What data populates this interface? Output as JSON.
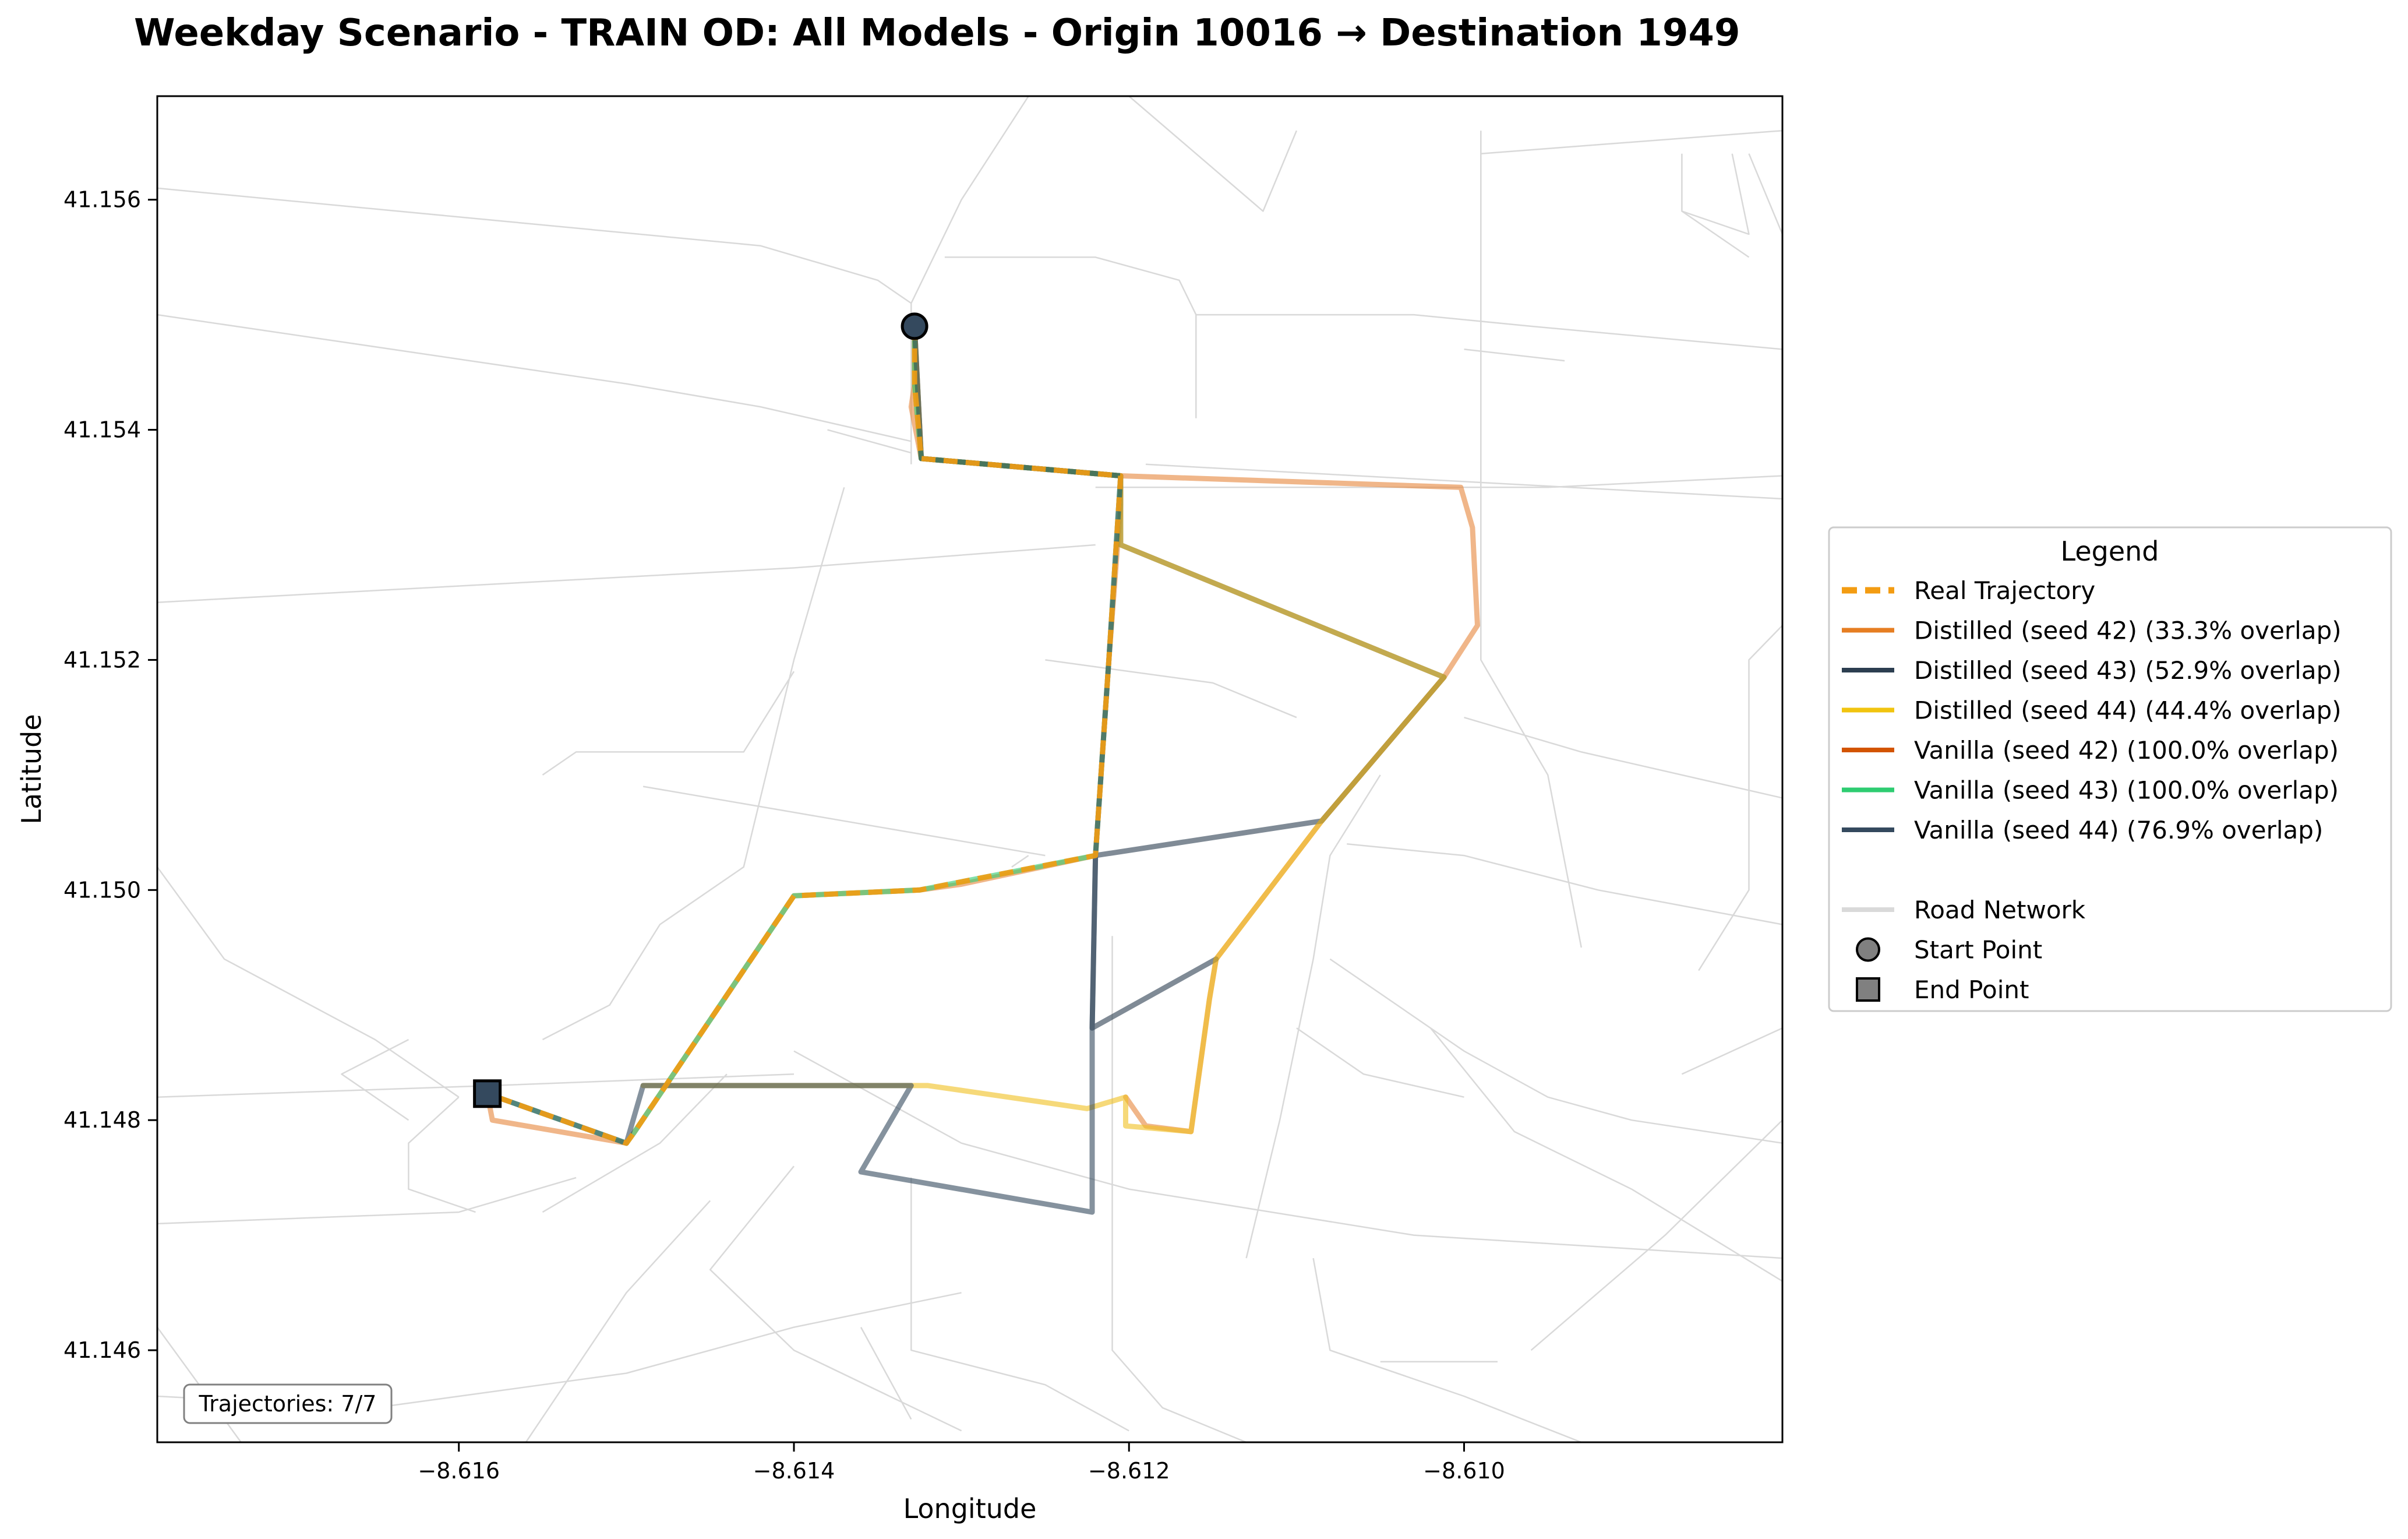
{
  "title": "Weekday Scenario - TRAIN OD: All Models - Origin 10016 → Destination 1949",
  "chart_data": {
    "type": "line",
    "xlabel": "Longitude",
    "ylabel": "Latitude",
    "xlim": [
      -8.6178,
      -8.6081
    ],
    "ylim": [
      41.1452,
      41.1569
    ],
    "xticks": [
      -8.616,
      -8.614,
      -8.612,
      -8.61
    ],
    "xtick_labels": [
      "−8.616",
      "−8.614",
      "−8.612",
      "−8.610"
    ],
    "yticks": [
      41.146,
      41.148,
      41.15,
      41.152,
      41.154,
      41.156
    ],
    "ytick_labels": [
      "41.146",
      "41.148",
      "41.150",
      "41.152",
      "41.154",
      "41.156"
    ],
    "grid": false,
    "legend_position": "outside-right",
    "legend_title": "Legend",
    "annotation": "Trajectories: 7/7",
    "road_color": "#d9d9d9",
    "roads": [
      [
        [
          -8.6178,
          41.1561
        ],
        [
          -8.6142,
          41.1556
        ],
        [
          -8.6135,
          41.1553
        ],
        [
          -8.6133,
          41.1551
        ]
      ],
      [
        [
          -8.6178,
          41.155
        ],
        [
          -8.615,
          41.1544
        ],
        [
          -8.6142,
          41.1542
        ],
        [
          -8.6133,
          41.1539
        ]
      ],
      [
        [
          -8.6178,
          41.1525
        ],
        [
          -8.614,
          41.1528
        ],
        [
          -8.6122,
          41.153
        ]
      ],
      [
        [
          -8.6126,
          41.1569
        ],
        [
          -8.613,
          41.156
        ],
        [
          -8.6133,
          41.1551
        ],
        [
          -8.6133,
          41.1537
        ]
      ],
      [
        [
          -8.6131,
          41.1555
        ],
        [
          -8.6122,
          41.1555
        ],
        [
          -8.6117,
          41.1553
        ],
        [
          -8.6116,
          41.155
        ],
        [
          -8.6116,
          41.1541
        ]
      ],
      [
        [
          -8.6116,
          41.155
        ],
        [
          -8.6103,
          41.155
        ],
        [
          -8.6096,
          41.1549
        ],
        [
          -8.6081,
          41.1547
        ]
      ],
      [
        [
          -8.6099,
          41.1566
        ],
        [
          -8.6099,
          41.152
        ],
        [
          -8.6095,
          41.151
        ],
        [
          -8.6093,
          41.1495
        ]
      ],
      [
        [
          -8.611,
          41.1566
        ],
        [
          -8.6112,
          41.1559
        ],
        [
          -8.612,
          41.1569
        ]
      ],
      [
        [
          -8.6122,
          41.1535
        ],
        [
          -8.6095,
          41.1535
        ],
        [
          -8.6081,
          41.1536
        ]
      ],
      [
        [
          -8.6119,
          41.1537
        ],
        [
          -8.6081,
          41.1534
        ]
      ],
      [
        [
          -8.6137,
          41.1535
        ],
        [
          -8.614,
          41.152
        ],
        [
          -8.6143,
          41.1502
        ],
        [
          -8.6148,
          41.1497
        ],
        [
          -8.6151,
          41.149
        ],
        [
          -8.6155,
          41.1487
        ]
      ],
      [
        [
          -8.614,
          41.1519
        ],
        [
          -8.6143,
          41.1512
        ],
        [
          -8.6153,
          41.1512
        ],
        [
          -8.6155,
          41.151
        ]
      ],
      [
        [
          -8.6149,
          41.1509
        ],
        [
          -8.6125,
          41.1503
        ]
      ],
      [
        [
          -8.6127,
          41.1502
        ],
        [
          -8.6126,
          41.1503
        ]
      ],
      [
        [
          -8.6178,
          41.1502
        ],
        [
          -8.6174,
          41.1494
        ],
        [
          -8.6165,
          41.1487
        ],
        [
          -8.616,
          41.1482
        ]
      ],
      [
        [
          -8.6178,
          41.1482
        ],
        [
          -8.6158,
          41.1483
        ],
        [
          -8.614,
          41.1484
        ]
      ],
      [
        [
          -8.6178,
          41.1471
        ],
        [
          -8.616,
          41.1472
        ],
        [
          -8.6153,
          41.1475
        ]
      ],
      [
        [
          -8.616,
          41.1482
        ],
        [
          -8.6163,
          41.1478
        ],
        [
          -8.6163,
          41.1474
        ],
        [
          -8.6159,
          41.1472
        ]
      ],
      [
        [
          -8.6163,
          41.148
        ],
        [
          -8.6167,
          41.1484
        ],
        [
          -8.6163,
          41.1487
        ]
      ],
      [
        [
          -8.6155,
          41.1472
        ],
        [
          -8.6148,
          41.1478
        ],
        [
          -8.6144,
          41.1484
        ]
      ],
      [
        [
          -8.6145,
          41.1473
        ],
        [
          -8.615,
          41.1465
        ],
        [
          -8.6156,
          41.1452
        ]
      ],
      [
        [
          -8.614,
          41.1486
        ],
        [
          -8.613,
          41.1478
        ],
        [
          -8.612,
          41.1474
        ],
        [
          -8.6103,
          41.147
        ],
        [
          -8.6081,
          41.1468
        ]
      ],
      [
        [
          -8.614,
          41.1476
        ],
        [
          -8.6145,
          41.1467
        ],
        [
          -8.614,
          41.146
        ],
        [
          -8.613,
          41.1453
        ]
      ],
      [
        [
          -8.6178,
          41.1456
        ],
        [
          -8.6165,
          41.1455
        ],
        [
          -8.615,
          41.1458
        ],
        [
          -8.614,
          41.1462
        ],
        [
          -8.613,
          41.1465
        ]
      ],
      [
        [
          -8.6178,
          41.1462
        ],
        [
          -8.6173,
          41.1452
        ]
      ],
      [
        [
          -8.6133,
          41.1475
        ],
        [
          -8.6133,
          41.146
        ],
        [
          -8.6125,
          41.1457
        ],
        [
          -8.612,
          41.1453
        ]
      ],
      [
        [
          -8.6136,
          41.1462
        ],
        [
          -8.6133,
          41.1454
        ]
      ],
      [
        [
          -8.6121,
          41.1496
        ],
        [
          -8.6121,
          41.146
        ],
        [
          -8.6118,
          41.1455
        ],
        [
          -8.6113,
          41.1452
        ]
      ],
      [
        [
          -8.6113,
          41.1468
        ],
        [
          -8.6111,
          41.148
        ],
        [
          -8.6109,
          41.1494
        ],
        [
          -8.6108,
          41.1503
        ],
        [
          -8.6105,
          41.151
        ]
      ],
      [
        [
          -8.6108,
          41.1494
        ],
        [
          -8.61,
          41.1486
        ],
        [
          -8.6095,
          41.1482
        ],
        [
          -8.609,
          41.148
        ],
        [
          -8.6081,
          41.1478
        ]
      ],
      [
        [
          -8.6102,
          41.1488
        ],
        [
          -8.6097,
          41.1479
        ],
        [
          -8.609,
          41.1474
        ],
        [
          -8.6081,
          41.1466
        ]
      ],
      [
        [
          -8.6096,
          41.146
        ],
        [
          -8.6088,
          41.147
        ],
        [
          -8.6081,
          41.148
        ]
      ],
      [
        [
          -8.6109,
          41.1468
        ],
        [
          -8.6108,
          41.146
        ],
        [
          -8.61,
          41.1456
        ],
        [
          -8.6093,
          41.1452
        ]
      ],
      [
        [
          -8.6105,
          41.1459
        ],
        [
          -8.6098,
          41.1459
        ]
      ],
      [
        [
          -8.6107,
          41.1504
        ],
        [
          -8.61,
          41.1503
        ],
        [
          -8.6092,
          41.15
        ],
        [
          -8.6081,
          41.1497
        ]
      ],
      [
        [
          -8.61,
          41.1515
        ],
        [
          -8.6093,
          41.1512
        ],
        [
          -8.6081,
          41.1508
        ]
      ],
      [
        [
          -8.6081,
          41.1523
        ],
        [
          -8.6083,
          41.152
        ],
        [
          -8.6083,
          41.15
        ],
        [
          -8.6086,
          41.1493
        ]
      ],
      [
        [
          -8.6081,
          41.1488
        ],
        [
          -8.6087,
          41.1484
        ]
      ],
      [
        [
          -8.6087,
          41.1564
        ],
        [
          -8.6087,
          41.1559
        ],
        [
          -8.6083,
          41.1557
        ],
        [
          -8.6084,
          41.1564
        ]
      ],
      [
        [
          -8.6087,
          41.1559
        ],
        [
          -8.6083,
          41.1555
        ]
      ],
      [
        [
          -8.6083,
          41.1564
        ],
        [
          -8.6081,
          41.1557
        ]
      ],
      [
        [
          -8.6099,
          41.1564
        ],
        [
          -8.6081,
          41.1566
        ]
      ],
      [
        [
          -8.61,
          41.1547
        ],
        [
          -8.6094,
          41.1546
        ]
      ],
      [
        [
          -8.611,
          41.1488
        ],
        [
          -8.6106,
          41.1484
        ],
        [
          -8.61,
          41.1482
        ]
      ],
      [
        [
          -8.6125,
          41.152
        ],
        [
          -8.6115,
          41.1518
        ],
        [
          -8.611,
          41.1515
        ]
      ],
      [
        [
          -8.6138,
          41.154
        ],
        [
          -8.6133,
          41.1538
        ]
      ]
    ],
    "series": [
      {
        "name": "Vanilla (seed 42) (100.0% overlap)",
        "color": "#e6863b",
        "style": "solid",
        "points": [
          [
            -8.61328,
            41.1549
          ],
          [
            -8.61328,
            41.1544
          ],
          [
            -8.6133,
            41.1542
          ],
          [
            -8.61324,
            41.15375
          ],
          [
            -8.61205,
            41.1536
          ],
          [
            -8.61205,
            41.15335
          ],
          [
            -8.61212,
            41.152
          ],
          [
            -8.6122,
            41.1503
          ],
          [
            -8.613,
            41.15005
          ],
          [
            -8.61325,
            41.15
          ],
          [
            -8.614,
            41.14995
          ],
          [
            -8.61495,
            41.1479
          ],
          [
            -8.615,
            41.1478
          ],
          [
            -8.6158,
            41.148
          ],
          [
            -8.61583,
            41.14823
          ]
        ]
      },
      {
        "name": "Distilled (seed 42) (33.3% overlap)",
        "color": "#e6863b",
        "style": "solid",
        "points": [
          [
            -8.61328,
            41.1549
          ],
          [
            -8.61328,
            41.1544
          ],
          [
            -8.61324,
            41.15375
          ],
          [
            -8.61205,
            41.1536
          ],
          [
            -8.61002,
            41.1535
          ],
          [
            -8.60995,
            41.15315
          ],
          [
            -8.60992,
            41.1523
          ],
          [
            -8.61012,
            41.15185
          ],
          [
            -8.61085,
            41.1506
          ],
          [
            -8.61148,
            41.1494
          ],
          [
            -8.61152,
            41.14905
          ],
          [
            -8.61163,
            41.1479
          ],
          [
            -8.6119,
            41.14795
          ],
          [
            -8.61202,
            41.1482
          ]
        ]
      },
      {
        "name": "Distilled (seed 43) (52.9% overlap)",
        "color": "#2c3e50",
        "style": "solid",
        "points": [
          [
            -8.61328,
            41.1549
          ],
          [
            -8.61324,
            41.15375
          ],
          [
            -8.61205,
            41.1536
          ],
          [
            -8.61205,
            41.153
          ],
          [
            -8.61012,
            41.15185
          ],
          [
            -8.61085,
            41.1506
          ],
          [
            -8.6122,
            41.1503
          ],
          [
            -8.61222,
            41.1488
          ],
          [
            -8.61148,
            41.1494
          ]
        ]
      },
      {
        "name": "Distilled (seed 44) (44.4% overlap)",
        "color": "#f0c020",
        "style": "solid",
        "points": [
          [
            -8.61328,
            41.1549
          ],
          [
            -8.61324,
            41.15375
          ],
          [
            -8.61205,
            41.1536
          ],
          [
            -8.61205,
            41.153
          ],
          [
            -8.61012,
            41.15185
          ],
          [
            -8.61085,
            41.1506
          ],
          [
            -8.61148,
            41.1494
          ],
          [
            -8.61152,
            41.14905
          ],
          [
            -8.61163,
            41.1479
          ],
          [
            -8.61202,
            41.14795
          ],
          [
            -8.61202,
            41.1482
          ],
          [
            -8.61225,
            41.1481
          ],
          [
            -8.61296,
            41.14825
          ],
          [
            -8.6132,
            41.1483
          ],
          [
            -8.6149,
            41.1483
          ]
        ]
      },
      {
        "name": "Vanilla (seed 43) (100.0% overlap)",
        "color": "#2ecc71",
        "style": "solid",
        "points": [
          [
            -8.61328,
            41.1549
          ],
          [
            -8.61328,
            41.1544
          ],
          [
            -8.61324,
            41.15375
          ],
          [
            -8.61205,
            41.1536
          ],
          [
            -8.61212,
            41.152
          ],
          [
            -8.6122,
            41.1503
          ],
          [
            -8.61325,
            41.15
          ],
          [
            -8.614,
            41.14995
          ],
          [
            -8.61495,
            41.1479
          ],
          [
            -8.615,
            41.1478
          ],
          [
            -8.61583,
            41.14823
          ]
        ]
      },
      {
        "name": "Vanilla (seed 44) (76.9% overlap)",
        "color": "#34495e",
        "style": "solid",
        "points": [
          [
            -8.61328,
            41.1549
          ],
          [
            -8.61324,
            41.15375
          ],
          [
            -8.61205,
            41.1536
          ],
          [
            -8.61212,
            41.152
          ],
          [
            -8.6122,
            41.1503
          ],
          [
            -8.61222,
            41.1488
          ],
          [
            -8.61222,
            41.1472
          ],
          [
            -8.6136,
            41.14755
          ],
          [
            -8.6133,
            41.1483
          ],
          [
            -8.6149,
            41.1483
          ],
          [
            -8.615,
            41.1478
          ],
          [
            -8.61583,
            41.14823
          ]
        ]
      },
      {
        "name": "Real Trajectory",
        "color": "#f39c12",
        "style": "dashed",
        "points": [
          [
            -8.61328,
            41.1549
          ],
          [
            -8.61328,
            41.1544
          ],
          [
            -8.61324,
            41.15375
          ],
          [
            -8.61205,
            41.1536
          ],
          [
            -8.61212,
            41.152
          ],
          [
            -8.6122,
            41.1503
          ],
          [
            -8.61325,
            41.15
          ],
          [
            -8.614,
            41.14995
          ],
          [
            -8.61495,
            41.1479
          ],
          [
            -8.615,
            41.1478
          ],
          [
            -8.61583,
            41.14823
          ]
        ]
      }
    ],
    "start_point": {
      "lon": -8.61328,
      "lat": 41.1549
    },
    "end_point": {
      "lon": -8.61583,
      "lat": 41.14823
    },
    "legend_entries": [
      {
        "label": "Real Trajectory",
        "color": "#f39c12",
        "kind": "dashed"
      },
      {
        "label": "Distilled (seed 42) (33.3% overlap)",
        "color": "#e67e22",
        "kind": "line"
      },
      {
        "label": "Distilled (seed 43) (52.9% overlap)",
        "color": "#2c3e50",
        "kind": "line"
      },
      {
        "label": "Distilled (seed 44) (44.4% overlap)",
        "color": "#f1c40f",
        "kind": "line"
      },
      {
        "label": "Vanilla (seed 42) (100.0% overlap)",
        "color": "#d35400",
        "kind": "line"
      },
      {
        "label": "Vanilla (seed 43) (100.0% overlap)",
        "color": "#2ecc71",
        "kind": "line"
      },
      {
        "label": "Vanilla (seed 44) (76.9% overlap)",
        "color": "#34495e",
        "kind": "line"
      },
      {
        "label": "",
        "color": "",
        "kind": "blank"
      },
      {
        "label": "Road Network",
        "color": "#d9d9d9",
        "kind": "line"
      },
      {
        "label": "Start Point",
        "color": "#808080",
        "kind": "circle"
      },
      {
        "label": "End Point",
        "color": "#808080",
        "kind": "square"
      }
    ]
  }
}
